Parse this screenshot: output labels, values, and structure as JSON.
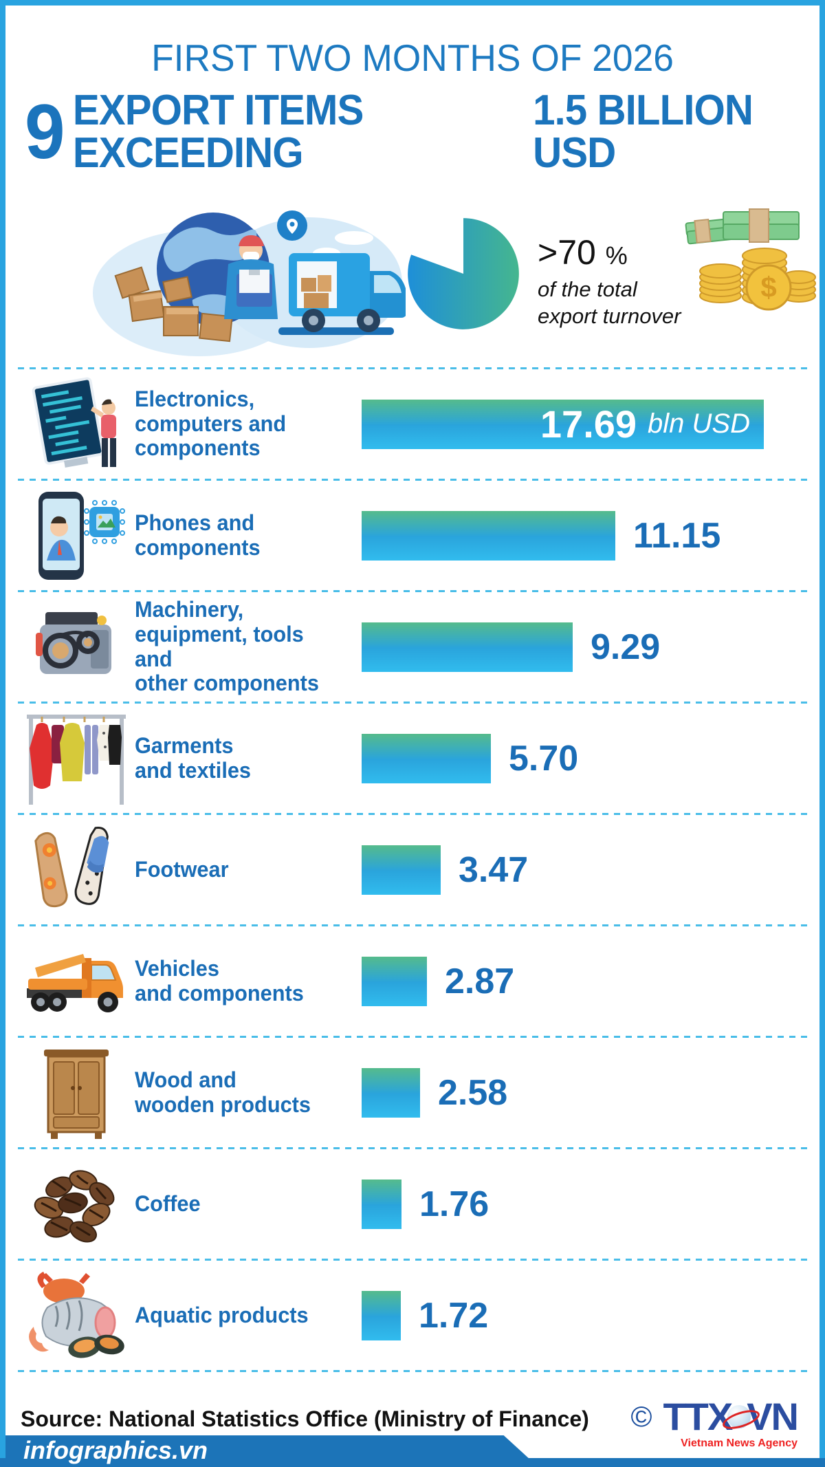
{
  "header": {
    "title": "FIRST TWO MONTHS OF 2026",
    "headline_number": "9",
    "headline_text": "EXPORT ITEMS EXCEEDING",
    "headline_value": "1.5 BILLION USD"
  },
  "summary": {
    "share_value": ">70",
    "share_unit": "%",
    "share_caption": "of the total\nexport turnover"
  },
  "rows": [
    {
      "label": "Electronics,\ncomputers and\ncomponents",
      "value": 17.69,
      "value_label": "17.69",
      "unit": "bln USD",
      "icon": "electronics-icon"
    },
    {
      "label": "Phones and\ncomponents",
      "value": 11.15,
      "value_label": "11.15",
      "icon": "phone-icon"
    },
    {
      "label": "Machinery,\nequipment, tools and\nother components",
      "value": 9.29,
      "value_label": "9.29",
      "icon": "machinery-icon"
    },
    {
      "label": "Garments\nand textiles",
      "value": 5.7,
      "value_label": "5.70",
      "icon": "garments-icon"
    },
    {
      "label": "Footwear",
      "value": 3.47,
      "value_label": "3.47",
      "icon": "footwear-icon"
    },
    {
      "label": "Vehicles\nand components",
      "value": 2.87,
      "value_label": "2.87",
      "icon": "vehicles-icon"
    },
    {
      "label": "Wood and\nwooden products",
      "value": 2.58,
      "value_label": "2.58",
      "icon": "wood-icon"
    },
    {
      "label": "Coffee",
      "value": 1.76,
      "value_label": "1.76",
      "icon": "coffee-icon"
    },
    {
      "label": "Aquatic products",
      "value": 1.72,
      "value_label": "1.72",
      "icon": "aquatic-icon"
    }
  ],
  "footer": {
    "source": "Source: National Statistics Office (Ministry of Finance)",
    "copyright": "©",
    "agency_logo_left": "TTX",
    "agency_logo_right": "VN",
    "agency_name": "Vietnam News Agency",
    "site": "infographics.vn"
  },
  "colors": {
    "frame_blue": "#29a3e0",
    "headline_blue": "#1b74bc",
    "label_blue": "#1a6db6",
    "bar_green": "#55bb8c",
    "bar_blue": "#2aa4dc",
    "band_blue": "#1c74b8",
    "dash_blue": "#49bde8",
    "agency_red": "#e22222"
  },
  "chart_data": {
    "type": "bar",
    "orientation": "horizontal",
    "title": "9 EXPORT ITEMS EXCEEDING 1.5 BILLION USD",
    "subtitle": "FIRST TWO MONTHS OF 2026",
    "categories": [
      "Electronics, computers and components",
      "Phones and components",
      "Machinery, equipment, tools and other components",
      "Garments and textiles",
      "Footwear",
      "Vehicles and components",
      "Wood and wooden products",
      "Coffee",
      "Aquatic products"
    ],
    "values": [
      17.69,
      11.15,
      9.29,
      5.7,
      3.47,
      2.87,
      2.58,
      1.76,
      1.72
    ],
    "unit": "bln USD",
    "value_labels": [
      "17.69",
      "11.15",
      "9.29",
      "5.70",
      "3.47",
      "2.87",
      "2.58",
      "1.76",
      "1.72"
    ],
    "annotation": ">70 % of the total export turnover",
    "xlim": [
      0,
      17.69
    ],
    "grid": false,
    "legend": false
  }
}
